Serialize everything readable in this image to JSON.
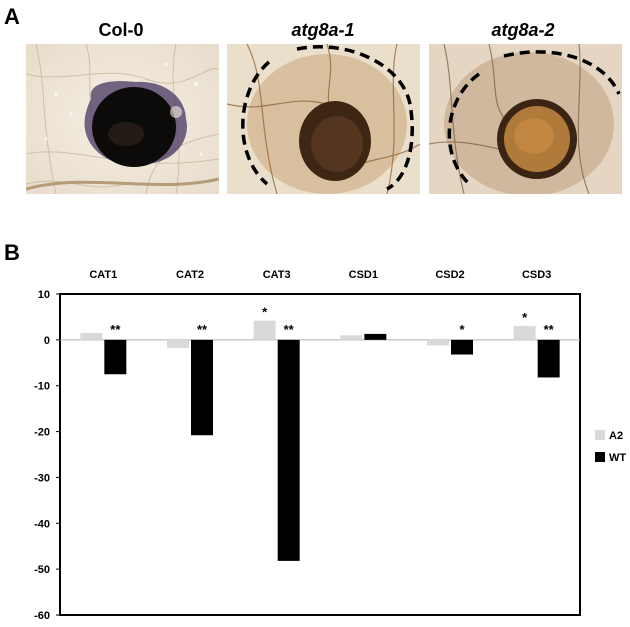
{
  "panel_a": {
    "letter": "A",
    "images": [
      {
        "title": "Col-0",
        "italic": false
      },
      {
        "title": "atg8a-1",
        "italic": true
      },
      {
        "title": "atg8a-2",
        "italic": true
      }
    ]
  },
  "panel_b": {
    "letter": "B"
  },
  "chart_data": {
    "type": "bar",
    "categories": [
      "CAT1",
      "CAT2",
      "CAT3",
      "CSD1",
      "CSD2",
      "CSD3"
    ],
    "series": [
      {
        "name": "A2",
        "color": "#d9d9d9",
        "values": [
          1.5,
          -1.8,
          4.2,
          1.0,
          -1.2,
          3.0
        ]
      },
      {
        "name": "WT",
        "color": "#000000",
        "values": [
          -7.5,
          -20.8,
          -48.2,
          1.3,
          -3.2,
          -8.2
        ]
      }
    ],
    "significance": [
      {
        "A2": "",
        "WT": "**"
      },
      {
        "A2": "",
        "WT": "**"
      },
      {
        "A2": "*",
        "WT": "**"
      },
      {
        "A2": "",
        "WT": ""
      },
      {
        "A2": "",
        "WT": "*"
      },
      {
        "A2": "*",
        "WT": "**"
      }
    ],
    "ylim": [
      -60,
      10
    ],
    "yticks": [
      10,
      0,
      -10,
      -20,
      -30,
      -40,
      -50,
      -60
    ],
    "title": "",
    "xlabel": "",
    "ylabel": "",
    "legend_position": "right",
    "categories_position": "top",
    "grid": false
  }
}
